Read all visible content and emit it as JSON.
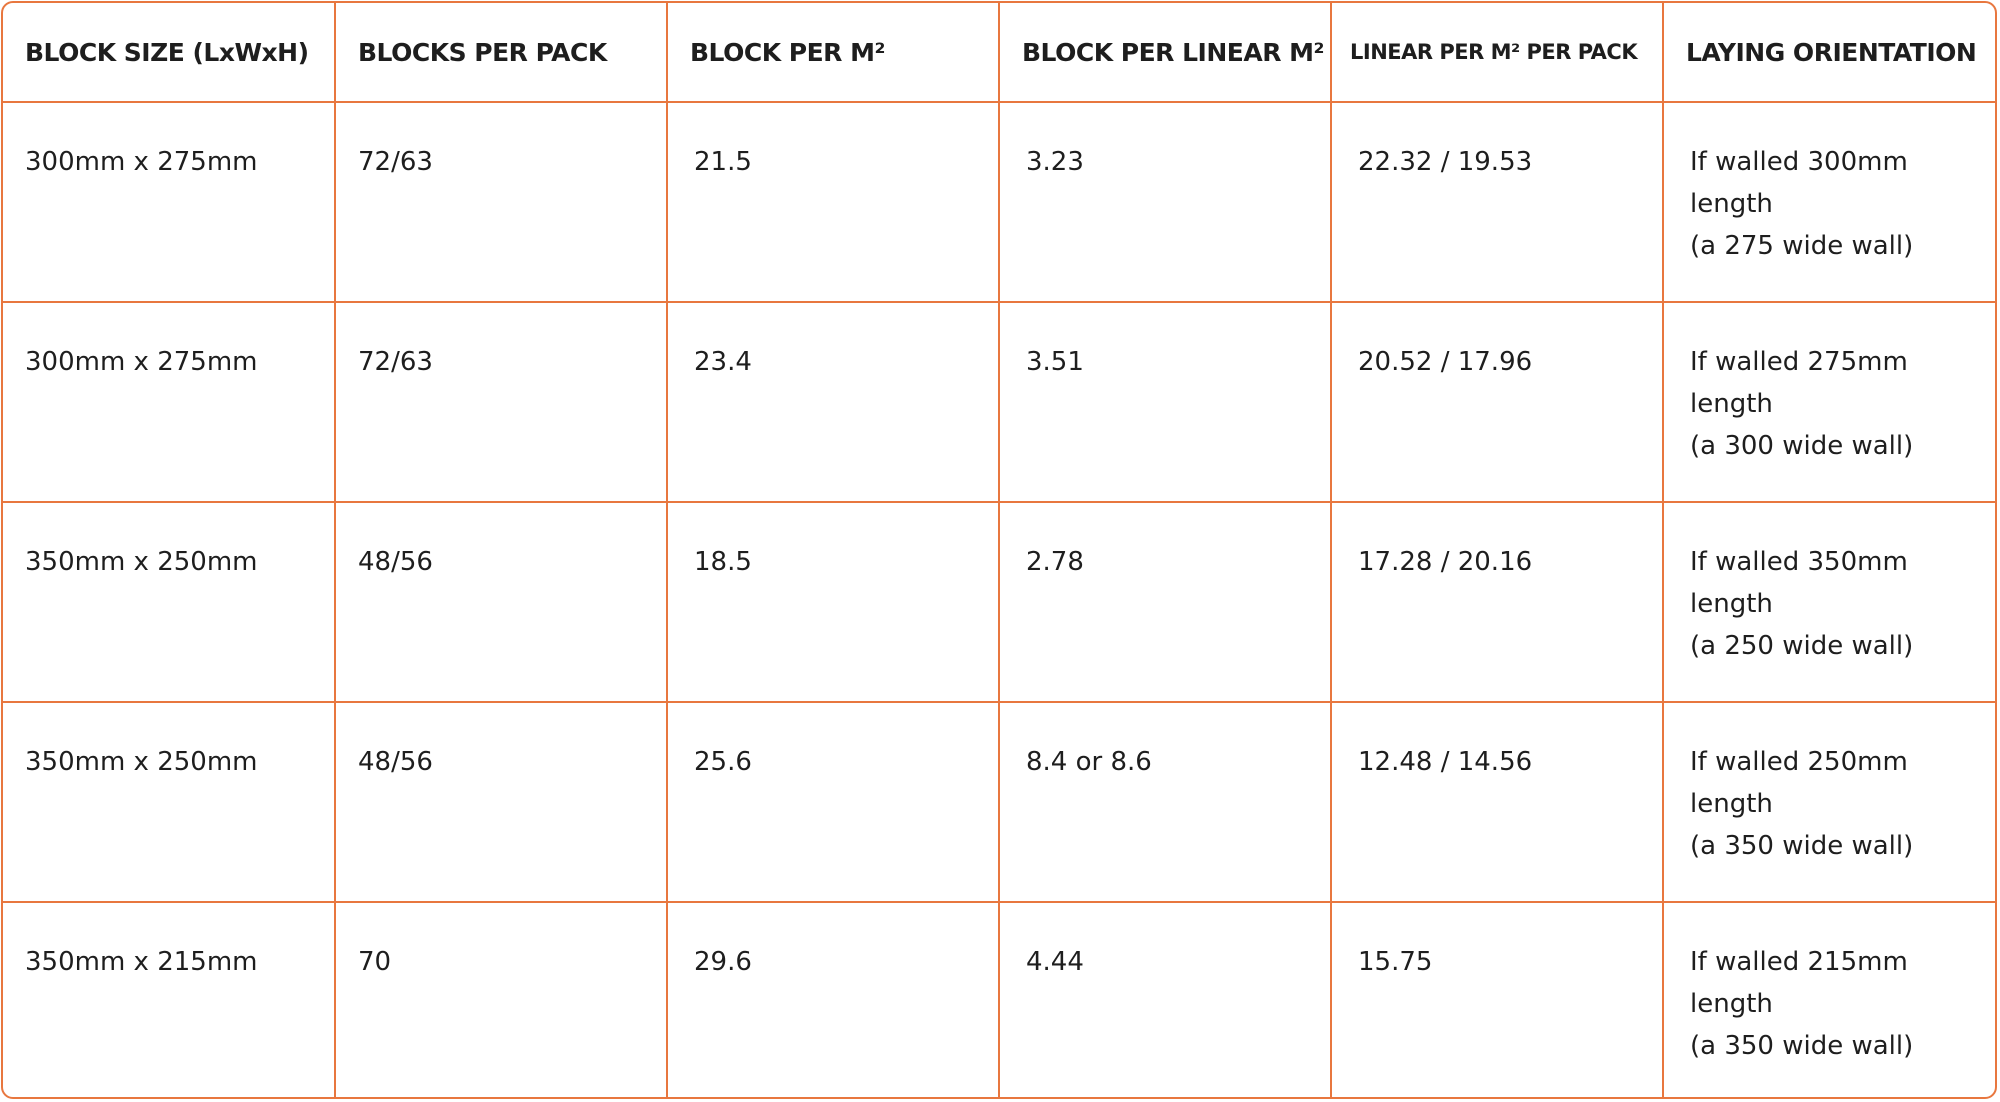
{
  "table": {
    "header": [
      "BLOCK SIZE (LxWxH)",
      "BLOCKS PER PACK",
      "BLOCK PER M²",
      "BLOCK PER LINEAR M²",
      "LINEAR PER M² PER PACK",
      "LAYING ORIENTATION"
    ],
    "rows": [
      [
        "300mm x 275mm",
        "72/63",
        "21.5",
        "3.23",
        "22.32 / 19.53",
        [
          "If walled 300mm length",
          "(a 275 wide wall)"
        ]
      ],
      [
        "300mm x 275mm",
        "72/63",
        "23.4",
        "3.51",
        "20.52 / 17.96",
        [
          "If walled 275mm length",
          "(a 300 wide wall)"
        ]
      ],
      [
        "350mm x 250mm",
        "48/56",
        "18.5",
        "2.78",
        "17.28 / 20.16",
        [
          "If walled 350mm length",
          "(a 250 wide wall)"
        ]
      ],
      [
        "350mm x 250mm",
        "48/56",
        "25.6",
        "8.4 or 8.6",
        "12.48 / 14.56",
        [
          "If walled 250mm length",
          "(a 350 wide wall)"
        ]
      ],
      [
        "350mm x 215mm",
        "70",
        "29.6",
        "4.44",
        "15.75",
        [
          "If walled 215mm length",
          "(a 350 wide wall)"
        ]
      ]
    ]
  }
}
